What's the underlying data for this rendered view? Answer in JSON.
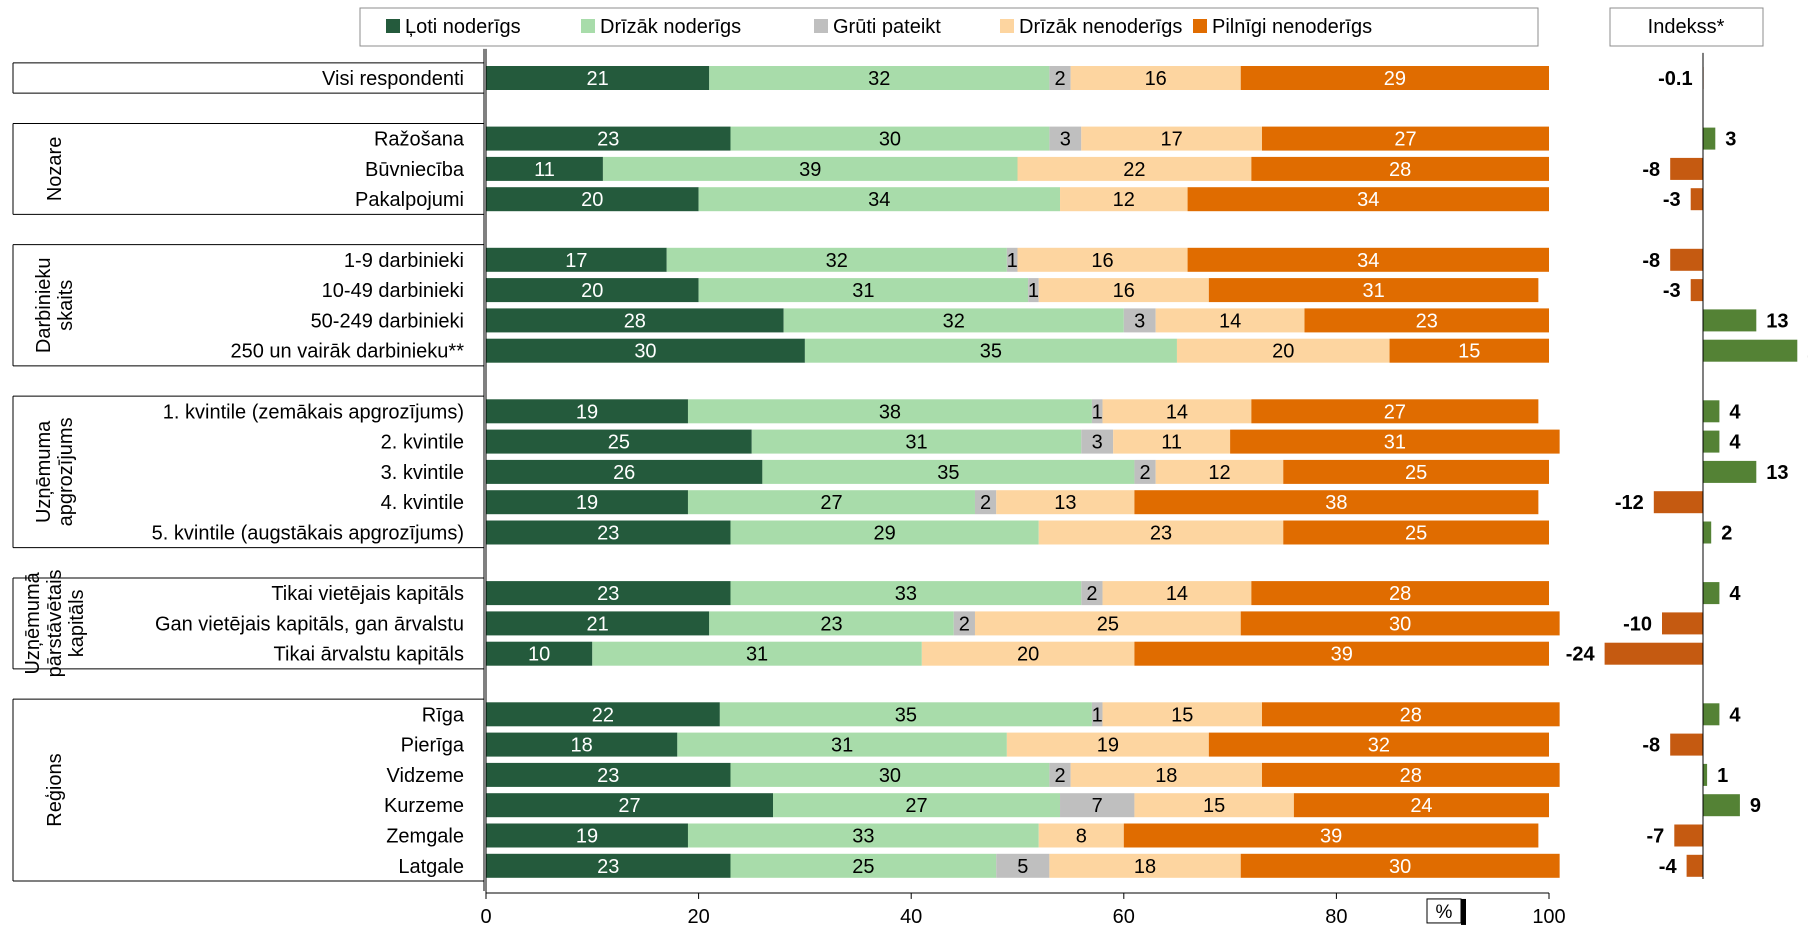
{
  "chart_data": {
    "type": "bar",
    "stacked": true,
    "orientation": "horizontal",
    "unit_label": "%",
    "xlim": [
      0,
      100
    ],
    "x_ticks": [
      "0",
      "20",
      "40",
      "60",
      "80",
      "100"
    ],
    "legend": [
      {
        "name": "Ļoti noderīgs",
        "color": "#245a3c"
      },
      {
        "name": "Drīzāk noderīgs",
        "color": "#a8dcaa"
      },
      {
        "name": "Grūti pateikt",
        "color": "#bfbfbf"
      },
      {
        "name": "Drīzāk nenoderīgs",
        "color": "#fdd5a0"
      },
      {
        "name": "Pilnīgi nenoderīgs",
        "color": "#e06c00"
      }
    ],
    "legend_placement": "top",
    "index_title": "Indekss*",
    "index_colors": {
      "positive": "#548235",
      "negative": "#c55a11"
    },
    "groups": [
      {
        "label_lines": [],
        "rows": [
          {
            "category": "Visi respondenti",
            "values": [
              21,
              32,
              2,
              16,
              29
            ],
            "index": "-0.1"
          }
        ]
      },
      {
        "label_lines": [
          "Nozare"
        ],
        "rows": [
          {
            "category": "Ražošana",
            "values": [
              23,
              30,
              3,
              17,
              27
            ],
            "index": "3"
          },
          {
            "category": "Būvniecība",
            "values": [
              11,
              39,
              0,
              22,
              28
            ],
            "index": "-8"
          },
          {
            "category": "Pakalpojumi",
            "values": [
              20,
              34,
              0,
              12,
              34
            ],
            "index": "-3"
          }
        ]
      },
      {
        "label_lines": [
          "Darbinieku",
          "skaits"
        ],
        "rows": [
          {
            "category": "1-9 darbinieki",
            "values": [
              17,
              32,
              1,
              16,
              34
            ],
            "index": "-8"
          },
          {
            "category": "10-49 darbinieki",
            "values": [
              20,
              31,
              1,
              16,
              31
            ],
            "index": "-3"
          },
          {
            "category": "50-249 darbinieki",
            "values": [
              28,
              32,
              3,
              14,
              23
            ],
            "index": "13"
          },
          {
            "category": "250 un vairāk darbinieku**",
            "values": [
              30,
              35,
              0,
              20,
              15
            ],
            "index": "23"
          }
        ]
      },
      {
        "label_lines": [
          "Uzņēmuma",
          "apgrozījums"
        ],
        "rows": [
          {
            "category": "1. kvintile (zemākais apgrozījums)",
            "values": [
              19,
              38,
              1,
              14,
              27
            ],
            "index": "4"
          },
          {
            "category": "2. kvintile",
            "values": [
              25,
              31,
              3,
              11,
              31
            ],
            "index": "4"
          },
          {
            "category": "3. kvintile",
            "values": [
              26,
              35,
              2,
              12,
              25
            ],
            "index": "13"
          },
          {
            "category": "4. kvintile",
            "values": [
              19,
              27,
              2,
              13,
              38
            ],
            "index": "-12"
          },
          {
            "category": "5. kvintile (augstākais apgrozījums)",
            "values": [
              23,
              29,
              0,
              23,
              25
            ],
            "index": "2"
          }
        ]
      },
      {
        "label_lines": [
          "Uzņēmumā",
          "pārstāvētais",
          "kapitāls"
        ],
        "rows": [
          {
            "category": "Tikai vietējais kapitāls",
            "values": [
              23,
              33,
              2,
              14,
              28
            ],
            "index": "4"
          },
          {
            "category": "Gan vietējais kapitāls, gan ārvalstu",
            "values": [
              21,
              23,
              2,
              25,
              30
            ],
            "index": "-10"
          },
          {
            "category": "Tikai ārvalstu kapitāls",
            "values": [
              10,
              31,
              0,
              20,
              39
            ],
            "index": "-24"
          }
        ]
      },
      {
        "label_lines": [
          "Reģions"
        ],
        "rows": [
          {
            "category": "Rīga",
            "values": [
              22,
              35,
              1,
              15,
              28
            ],
            "index": "4"
          },
          {
            "category": "Pierīga",
            "values": [
              18,
              31,
              0,
              19,
              32
            ],
            "index": "-8"
          },
          {
            "category": "Vidzeme",
            "values": [
              23,
              30,
              2,
              18,
              28
            ],
            "index": "1"
          },
          {
            "category": "Kurzeme",
            "values": [
              27,
              27,
              7,
              15,
              24
            ],
            "index": "9"
          },
          {
            "category": "Zemgale",
            "values": [
              19,
              33,
              0,
              8,
              39
            ],
            "index": "-7"
          },
          {
            "category": "Latgale",
            "values": [
              23,
              25,
              5,
              18,
              30
            ],
            "index": "-4"
          }
        ]
      }
    ]
  }
}
